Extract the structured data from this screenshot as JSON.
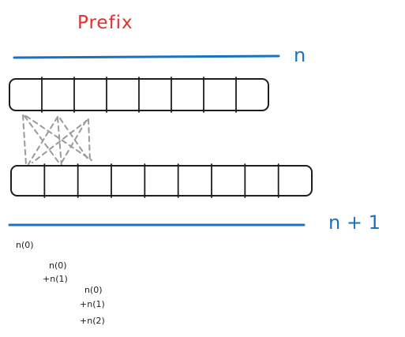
{
  "title": "Prefix",
  "top_label": "n",
  "bottom_label": "n + 1",
  "colors": {
    "title": "#e03131",
    "accent_blue": "#1971c2",
    "ink": "#1e1e1e",
    "dashed_connector": "#9a9a9a"
  },
  "arrays": {
    "top": {
      "cells": 8
    },
    "bottom": {
      "cells": 9
    }
  },
  "notes": [
    {
      "id": "note-1",
      "lines": [
        "n(0)"
      ]
    },
    {
      "id": "note-2",
      "lines": [
        "n(0)",
        "+n(1)"
      ]
    },
    {
      "id": "note-3",
      "lines": [
        "n(0)",
        "+n(1)",
        "+n(2)"
      ]
    }
  ]
}
